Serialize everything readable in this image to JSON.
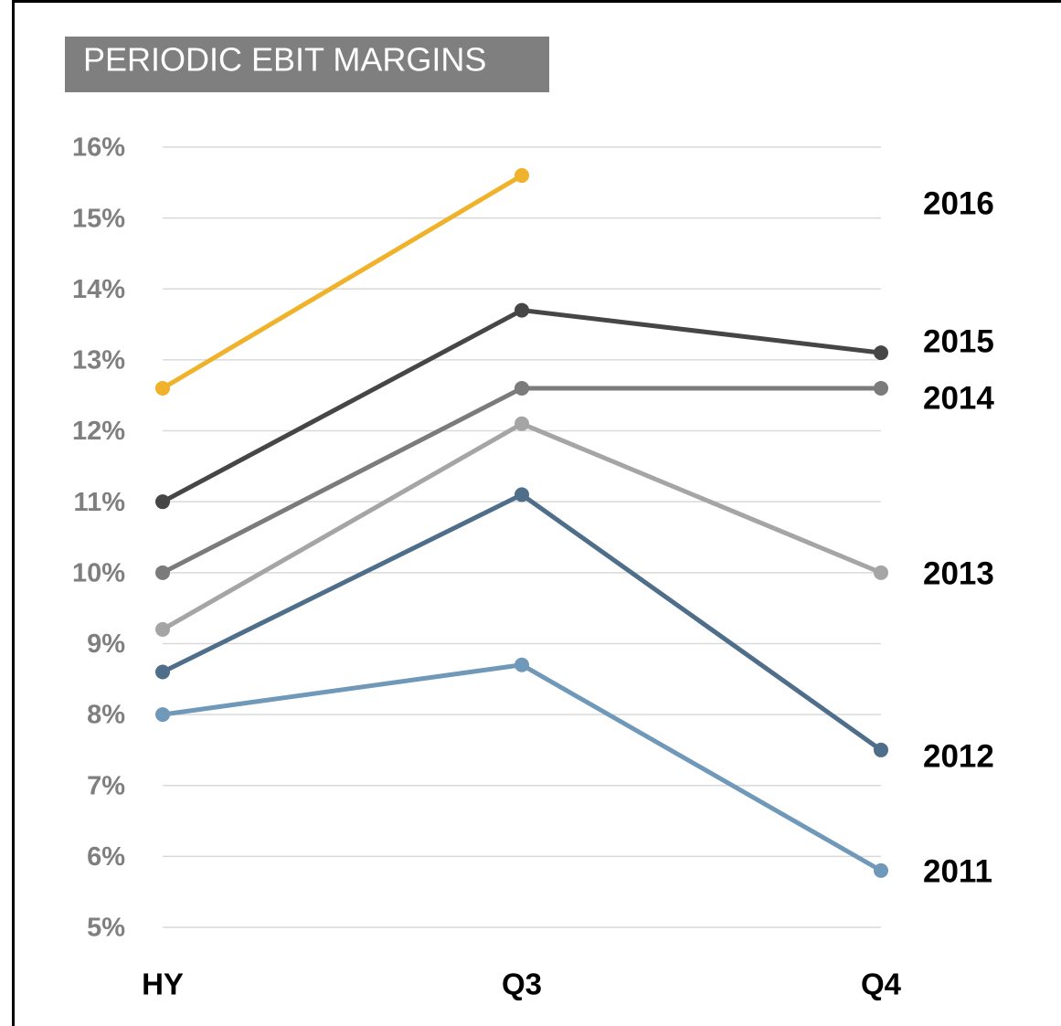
{
  "chart_data": {
    "type": "line",
    "title": "PERIODIC EBIT MARGINS",
    "categories": [
      "HY",
      "Q3",
      "Q4"
    ],
    "series": [
      {
        "name": "2016",
        "color": "#f0b22a",
        "values": [
          12.6,
          15.6,
          null
        ]
      },
      {
        "name": "2015",
        "color": "#464646",
        "values": [
          11.0,
          13.7,
          13.1
        ]
      },
      {
        "name": "2014",
        "color": "#7b7b7b",
        "values": [
          10.0,
          12.6,
          12.6
        ]
      },
      {
        "name": "2013",
        "color": "#a5a5a5",
        "values": [
          9.2,
          12.1,
          10.0
        ]
      },
      {
        "name": "2012",
        "color": "#4e6e8a",
        "values": [
          8.6,
          11.1,
          7.5
        ]
      },
      {
        "name": "2011",
        "color": "#7098b8",
        "values": [
          8.0,
          8.7,
          5.8
        ]
      }
    ],
    "ylim": [
      5,
      16
    ],
    "yticks": [
      {
        "value": 5,
        "label": "5%"
      },
      {
        "value": 6,
        "label": "6%"
      },
      {
        "value": 7,
        "label": "7%"
      },
      {
        "value": 8,
        "label": "8%"
      },
      {
        "value": 9,
        "label": "9%"
      },
      {
        "value": 10,
        "label": "10%"
      },
      {
        "value": 11,
        "label": "11%"
      },
      {
        "value": 12,
        "label": "12%"
      },
      {
        "value": 13,
        "label": "13%"
      },
      {
        "value": 14,
        "label": "14%"
      },
      {
        "value": 15,
        "label": "15%"
      },
      {
        "value": 16,
        "label": "16%"
      }
    ],
    "grid": true
  }
}
